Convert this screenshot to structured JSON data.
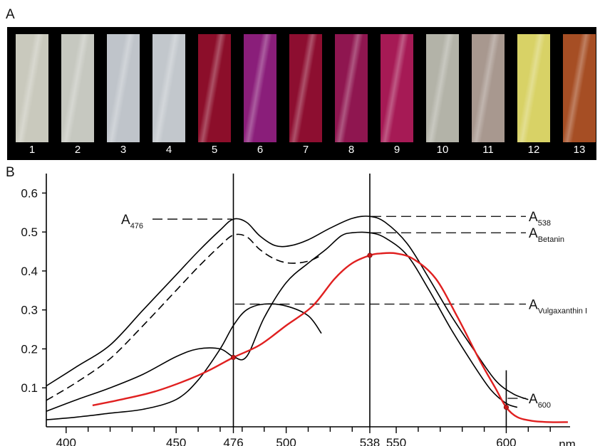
{
  "panel_a": {
    "label": "A",
    "samples": [
      {
        "num": "1",
        "color": "#c9c9bd"
      },
      {
        "num": "2",
        "color": "#c6c8c0"
      },
      {
        "num": "3",
        "color": "#bfc4ca"
      },
      {
        "num": "4",
        "color": "#c2c7cc"
      },
      {
        "num": "5",
        "color": "#8c0e2a"
      },
      {
        "num": "6",
        "color": "#8a1e7a"
      },
      {
        "num": "7",
        "color": "#8d0e30"
      },
      {
        "num": "8",
        "color": "#8f1650"
      },
      {
        "num": "9",
        "color": "#a61a55"
      },
      {
        "num": "10",
        "color": "#b3b3a8"
      },
      {
        "num": "11",
        "color": "#a8988f"
      },
      {
        "num": "12",
        "color": "#d8d266"
      },
      {
        "num": "13",
        "color": "#a64e24"
      }
    ]
  },
  "panel_b": {
    "label": "B"
  },
  "chart_data": {
    "type": "line",
    "xlabel": "nm",
    "ylabel": "",
    "xlim": [
      391,
      629
    ],
    "ylim": [
      0,
      0.65
    ],
    "xticks_labeled": [
      400,
      450,
      476,
      500,
      538,
      550,
      600
    ],
    "xticks_minor": [
      410,
      420,
      430,
      440,
      460,
      470,
      480,
      490,
      510,
      520,
      530,
      560,
      570,
      580,
      590,
      610,
      620
    ],
    "yticks": [
      0.1,
      0.2,
      0.3,
      0.4,
      0.5,
      0.6
    ],
    "ytick_labels": [
      "0.1",
      "0.2",
      "0.3",
      "0.4",
      "0.5",
      "0.6"
    ],
    "vertical_lines": [
      476,
      538,
      600
    ],
    "series": [
      {
        "style": "solid",
        "color": "#000000",
        "x": [
          391,
          405,
          420,
          435,
          450,
          460,
          470,
          476,
          482,
          488,
          495,
          502,
          510,
          520,
          530,
          538,
          545,
          555,
          565,
          575,
          585,
          595,
          603,
          610
        ],
        "y": [
          0.105,
          0.155,
          0.21,
          0.3,
          0.39,
          0.45,
          0.505,
          0.533,
          0.525,
          0.49,
          0.465,
          0.465,
          0.48,
          0.51,
          0.535,
          0.54,
          0.525,
          0.47,
          0.38,
          0.285,
          0.2,
          0.12,
          0.085,
          0.07
        ]
      },
      {
        "style": "dashed",
        "color": "#000000",
        "x": [
          391,
          405,
          420,
          435,
          450,
          460,
          470,
          476,
          482,
          488,
          495,
          502,
          510,
          516
        ],
        "y": [
          0.068,
          0.115,
          0.175,
          0.26,
          0.35,
          0.41,
          0.465,
          0.492,
          0.488,
          0.455,
          0.43,
          0.42,
          0.425,
          0.44
        ]
      },
      {
        "style": "solid",
        "color": "#000000",
        "x": [
          391,
          405,
          420,
          435,
          450,
          460,
          470,
          476,
          482,
          490,
          500,
          510,
          518,
          525,
          530,
          538,
          545,
          555,
          565,
          575,
          585,
          593,
          600,
          605
        ],
        "y": [
          0.04,
          0.07,
          0.1,
          0.135,
          0.18,
          0.2,
          0.2,
          0.18,
          0.18,
          0.28,
          0.37,
          0.42,
          0.455,
          0.49,
          0.498,
          0.498,
          0.485,
          0.44,
          0.35,
          0.25,
          0.16,
          0.095,
          0.06,
          0.05
        ]
      },
      {
        "style": "solid",
        "color": "#000000",
        "x": [
          391,
          405,
          420,
          435,
          450,
          460,
          470,
          476,
          482,
          490,
          500,
          510,
          516
        ],
        "y": [
          0.018,
          0.025,
          0.035,
          0.045,
          0.07,
          0.12,
          0.2,
          0.26,
          0.3,
          0.315,
          0.31,
          0.285,
          0.24
        ]
      },
      {
        "style": "solid",
        "color": "#e02020",
        "x": [
          412,
          425,
          440,
          455,
          465,
          476,
          488,
          500,
          512,
          522,
          530,
          538,
          543,
          550,
          558,
          568,
          578,
          588,
          595,
          600,
          605,
          612,
          620,
          628
        ],
        "y": [
          0.055,
          0.07,
          0.09,
          0.12,
          0.145,
          0.178,
          0.21,
          0.26,
          0.31,
          0.38,
          0.42,
          0.44,
          0.445,
          0.445,
          0.43,
          0.38,
          0.28,
          0.17,
          0.1,
          0.05,
          0.025,
          0.015,
          0.012,
          0.012
        ]
      }
    ],
    "intersection_markers": [
      {
        "x": 476,
        "y": 0.178
      },
      {
        "x": 538,
        "y": 0.44
      },
      {
        "x": 600,
        "y": 0.05
      }
    ],
    "annotations": [
      {
        "main": "A",
        "sub": "476",
        "x": 476,
        "y": 0.533,
        "side": "left"
      },
      {
        "main": "A",
        "sub": "538",
        "x": 538,
        "y": 0.54,
        "side": "right"
      },
      {
        "main": "A",
        "sub": "Betanin",
        "x": 538,
        "y": 0.498,
        "side": "right"
      },
      {
        "main": "A",
        "sub": "Vulgaxanthin I",
        "x": 476,
        "y": 0.315,
        "side": "right"
      },
      {
        "main": "A",
        "sub": "600",
        "x": 600,
        "y": 0.073,
        "side": "right"
      }
    ]
  }
}
